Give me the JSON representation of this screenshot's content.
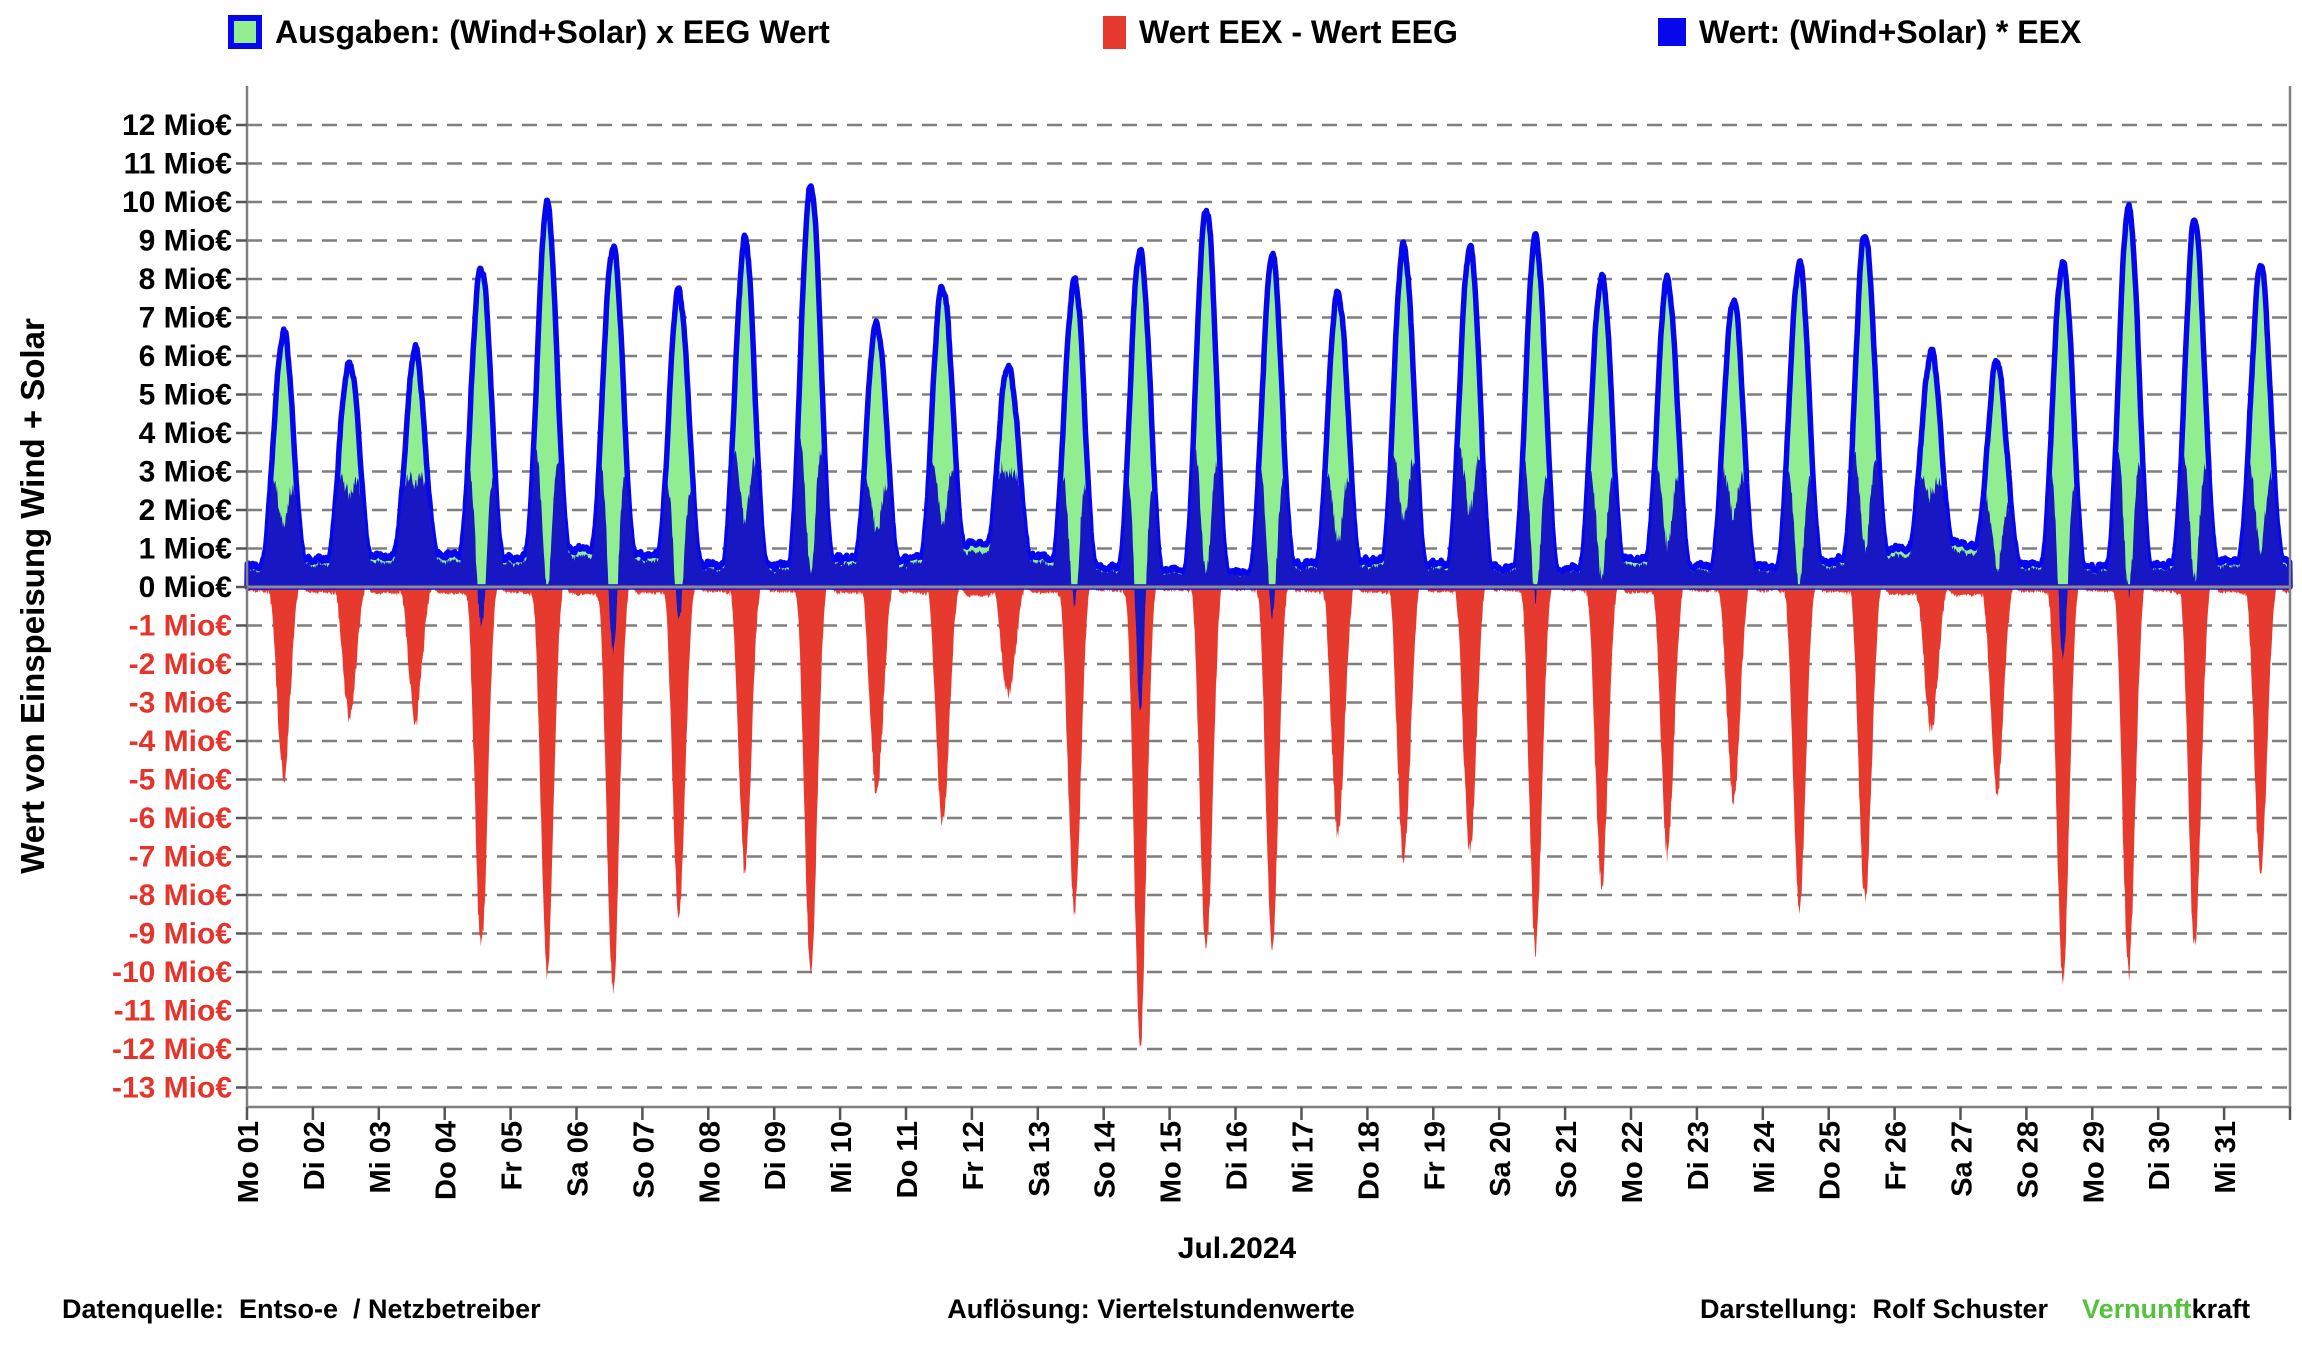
{
  "legend": [
    {
      "label": "Ausgaben: (Wind+Solar) x EEG Wert",
      "fill": "#90EE90",
      "border": "#0707ee"
    },
    {
      "label": "Wert EEX - Wert EEG",
      "fill": "#e73a2e"
    },
    {
      "label": "Wert: (Wind+Solar) * EEX",
      "fill": "#0707ee"
    }
  ],
  "y_axis": {
    "title": "Wert von Einspeisung Wind + Solar",
    "unit": "Mio€",
    "max": 12,
    "min": -13,
    "tick_step": 1,
    "positive_label_color": "#000000",
    "negative_label_color": "#e5342b"
  },
  "x_axis": {
    "month_label": "Jul.2024",
    "labels": [
      "Mo 01",
      "Di 02",
      "Mi 03",
      "Do 04",
      "Fr 05",
      "Sa 06",
      "So 07",
      "Mo 08",
      "Di 09",
      "Mi 10",
      "Do 11",
      "Fr 12",
      "Sa 13",
      "So 14",
      "Mo 15",
      "Di 16",
      "Mi 17",
      "Do 18",
      "Fr 19",
      "Sa 20",
      "So 21",
      "Mo 22",
      "Di 23",
      "Mi 24",
      "Do 25",
      "Fr 26",
      "Sa 27",
      "So 28",
      "Mo 29",
      "Di 30",
      "Mi 31"
    ]
  },
  "footer": {
    "left": "Datenquelle:  Entso-e  / Netzbetreiber",
    "center": "Auflösung: Viertelstundenwerte",
    "right_label": "Darstellung:  Rolf Schuster",
    "brand_green": "Vernunft",
    "brand_black": "kraft"
  },
  "colors": {
    "green_fill": "#90EE90",
    "blue_stroke": "#0707ee",
    "blue_area": "#1717c4",
    "red_area": "#e73a2e",
    "gridline": "#7f7f7f",
    "zero_line": "#8c8c8c",
    "axis": "#808080",
    "tick": "#555555"
  },
  "chart_data": {
    "type": "area",
    "resolution": "Viertelstundenwerte (quarter-hour values)",
    "month": "Jul.2024",
    "ylim": [
      -13,
      12
    ],
    "ylabel": "Wert von Einspeisung Wind + Solar",
    "grid": "dashed horizontal, solid zero line",
    "legend_position": "top",
    "categories": [
      "Mo 01",
      "Di 02",
      "Mi 03",
      "Do 04",
      "Fr 05",
      "Sa 06",
      "So 07",
      "Mo 08",
      "Di 09",
      "Mi 10",
      "Do 11",
      "Fr 12",
      "Sa 13",
      "So 14",
      "Mo 15",
      "Di 16",
      "Mi 17",
      "Do 18",
      "Fr 19",
      "Sa 20",
      "So 21",
      "Mo 22",
      "Di 23",
      "Mi 24",
      "Do 25",
      "Fr 26",
      "Sa 27",
      "So 28",
      "Mo 29",
      "Di 30",
      "Mi 31"
    ],
    "series": [
      {
        "name": "Ausgaben: (Wind+Solar) x EEG Wert",
        "style": "green area, thick blue outline",
        "daily_peak_mio_eur": [
          6.6,
          5.9,
          6.1,
          8.4,
          9.9,
          8.9,
          7.7,
          9.0,
          10.5,
          6.9,
          7.9,
          5.8,
          8.0,
          8.8,
          9.9,
          8.6,
          7.7,
          8.9,
          8.9,
          9.1,
          8.1,
          8.0,
          7.5,
          8.4,
          9.2,
          6.1,
          5.8,
          8.5,
          9.9,
          9.5,
          8.3
        ]
      },
      {
        "name": "Wert EEX - Wert EEG",
        "style": "red area below zero",
        "daily_min_mio_eur": [
          -4.9,
          -3.4,
          -3.4,
          -9.5,
          -9.9,
          -10.6,
          -8.6,
          -7.3,
          -10.0,
          -5.4,
          -6.2,
          -2.8,
          -8.4,
          -11.9,
          -9.6,
          -9.3,
          -6.5,
          -7.2,
          -6.9,
          -9.4,
          -7.8,
          -6.9,
          -5.6,
          -8.3,
          -8.2,
          -3.7,
          -5.3,
          -10.3,
          -10.0,
          -9.3,
          -7.4
        ]
      },
      {
        "name": "Wert: (Wind+Solar) * EEX",
        "style": "dark blue area",
        "daily_midday_mio_eur": [
          1.7,
          2.5,
          2.7,
          -1.1,
          0.0,
          -1.7,
          -0.9,
          1.7,
          0.5,
          1.5,
          1.7,
          3.0,
          -0.4,
          -3.1,
          0.3,
          -0.7,
          1.2,
          1.7,
          2.0,
          -0.3,
          0.3,
          1.1,
          1.9,
          0.1,
          1.0,
          2.4,
          0.5,
          -1.8,
          -0.1,
          0.2,
          0.9
        ]
      }
    ],
    "night_base_mio_eur": [
      0.55,
      0.7,
      0.8,
      0.85,
      0.75,
      1.0,
      0.85,
      0.6,
      0.55,
      0.75,
      0.7,
      1.15,
      0.8,
      0.5,
      0.45,
      0.35,
      0.6,
      0.7,
      0.6,
      0.5,
      0.45,
      0.75,
      0.55,
      0.5,
      0.65,
      1.0,
      1.15,
      0.6,
      0.5,
      0.6,
      0.7
    ]
  }
}
